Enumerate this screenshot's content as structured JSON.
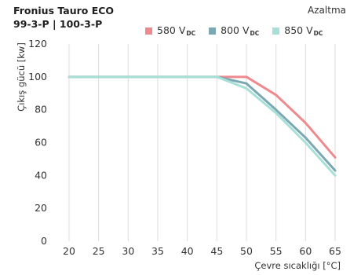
{
  "header": {
    "title_line1": "Fronius Tauro ECO",
    "title_line2": "99-3-P | 100-3-P",
    "badge": "Azaltma"
  },
  "chart_data": {
    "type": "line",
    "x": [
      20,
      25,
      30,
      35,
      40,
      45,
      50,
      55,
      60,
      65
    ],
    "xlabel": "Çevre sıcaklığı [°C]",
    "ylabel": "Çıkış gücü [kw]",
    "xlim": [
      20,
      65
    ],
    "ylim": [
      0,
      120
    ],
    "yticks": [
      0,
      20,
      40,
      60,
      80,
      100,
      120
    ],
    "grid": "vertical",
    "legend_position": "top-right",
    "series": [
      {
        "name": "580 V",
        "name_sub": "DC",
        "color": "#ee8a8d",
        "values": [
          100,
          100,
          100,
          100,
          100,
          100,
          100,
          89,
          72,
          51
        ]
      },
      {
        "name": "800 V",
        "name_sub": "DC",
        "color": "#7ba8b2",
        "values": [
          100,
          100,
          100,
          100,
          100,
          100,
          96,
          80,
          63,
          43
        ]
      },
      {
        "name": "850 V",
        "name_sub": "DC",
        "color": "#a8e0d8",
        "values": [
          100,
          100,
          100,
          100,
          100,
          100,
          93,
          78,
          60,
          40
        ]
      }
    ]
  }
}
